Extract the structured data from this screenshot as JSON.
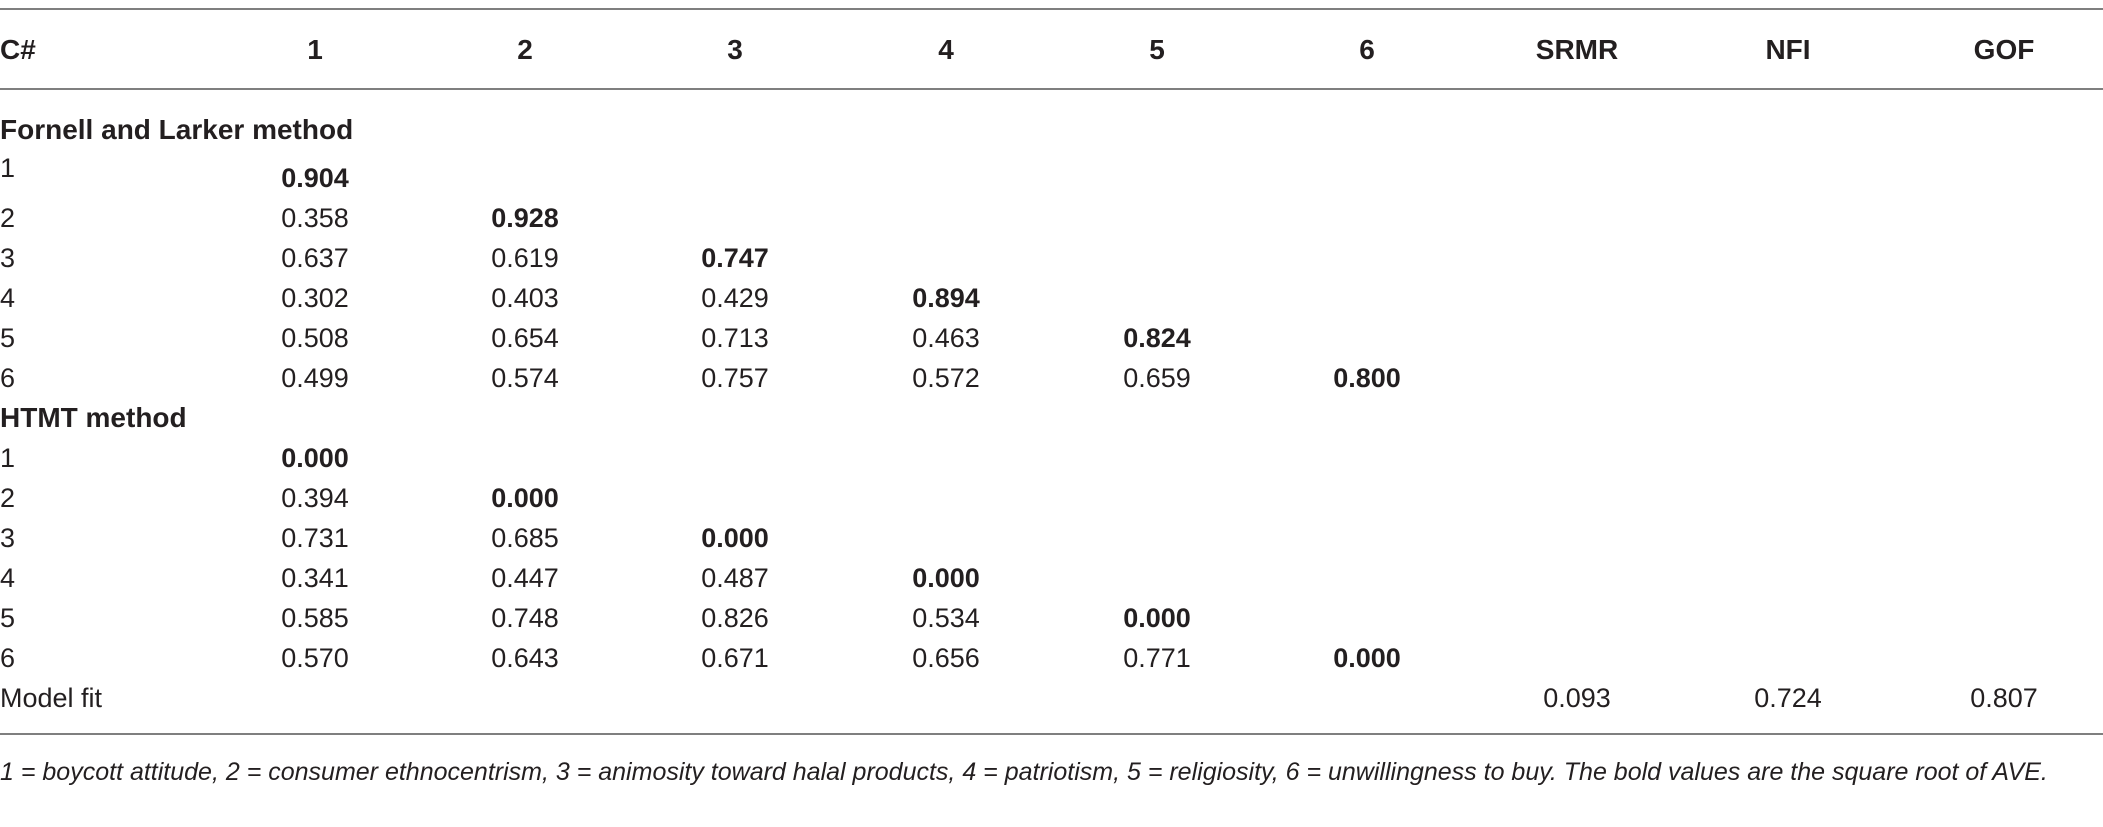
{
  "headers": [
    "C#",
    "1",
    "2",
    "3",
    "4",
    "5",
    "6",
    "SRMR",
    "NFI",
    "GOF"
  ],
  "sections": [
    {
      "title": "Fornell and Larker method",
      "rows": [
        {
          "label": "1",
          "cells": [
            "0.904",
            "",
            "",
            "",
            "",
            "",
            "",
            "",
            ""
          ],
          "bold_index": 0
        },
        {
          "label": "2",
          "cells": [
            "0.358",
            "0.928",
            "",
            "",
            "",
            "",
            "",
            "",
            ""
          ],
          "bold_index": 1
        },
        {
          "label": "3",
          "cells": [
            "0.637",
            "0.619",
            "0.747",
            "",
            "",
            "",
            "",
            "",
            ""
          ],
          "bold_index": 2
        },
        {
          "label": "4",
          "cells": [
            "0.302",
            "0.403",
            "0.429",
            "0.894",
            "",
            "",
            "",
            "",
            ""
          ],
          "bold_index": 3
        },
        {
          "label": "5",
          "cells": [
            "0.508",
            "0.654",
            "0.713",
            "0.463",
            "0.824",
            "",
            "",
            "",
            ""
          ],
          "bold_index": 4
        },
        {
          "label": "6",
          "cells": [
            "0.499",
            "0.574",
            "0.757",
            "0.572",
            "0.659",
            "0.800",
            "",
            "",
            ""
          ],
          "bold_index": 5
        }
      ]
    },
    {
      "title": "HTMT method",
      "rows": [
        {
          "label": "1",
          "cells": [
            "0.000",
            "",
            "",
            "",
            "",
            "",
            "",
            "",
            ""
          ],
          "bold_index": 0
        },
        {
          "label": "2",
          "cells": [
            "0.394",
            "0.000",
            "",
            "",
            "",
            "",
            "",
            "",
            ""
          ],
          "bold_index": 1
        },
        {
          "label": "3",
          "cells": [
            "0.731",
            "0.685",
            "0.000",
            "",
            "",
            "",
            "",
            "",
            ""
          ],
          "bold_index": 2
        },
        {
          "label": "4",
          "cells": [
            "0.341",
            "0.447",
            "0.487",
            "0.000",
            "",
            "",
            "",
            "",
            ""
          ],
          "bold_index": 3
        },
        {
          "label": "5",
          "cells": [
            "0.585",
            "0.748",
            "0.826",
            "0.534",
            "0.000",
            "",
            "",
            "",
            ""
          ],
          "bold_index": 4
        },
        {
          "label": "6",
          "cells": [
            "0.570",
            "0.643",
            "0.671",
            "0.656",
            "0.771",
            "0.000",
            "",
            "",
            ""
          ],
          "bold_index": 5
        }
      ]
    }
  ],
  "model_fit": {
    "label": "Model fit",
    "cells": [
      "",
      "",
      "",
      "",
      "",
      "",
      "0.093",
      "0.724",
      "0.807"
    ]
  },
  "footnote": "1 = boycott attitude, 2 = consumer ethnocentrism, 3 = animosity toward halal products, 4 = patriotism, 5 = religiosity, 6 = unwillingness to buy. The bold values are the square root of AVE."
}
